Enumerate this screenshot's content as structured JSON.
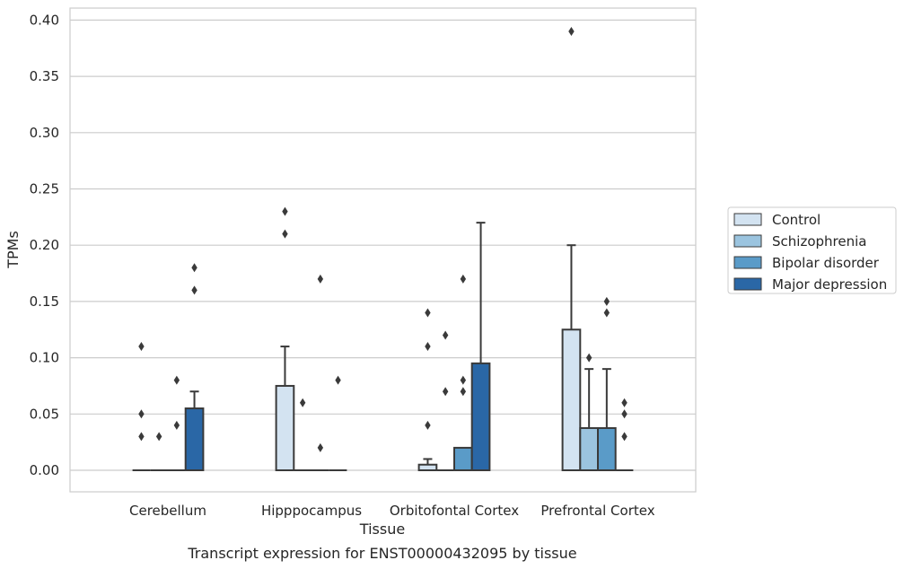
{
  "chart_data": {
    "type": "box",
    "title": "",
    "caption": "Transcript expression for ENST00000432095 by tissue",
    "xlabel": "Tissue",
    "ylabel": "TPMs",
    "ylim": [
      -0.019,
      0.41
    ],
    "yticks": [
      0.0,
      0.05,
      0.1,
      0.15,
      0.2,
      0.25,
      0.3,
      0.35,
      0.4
    ],
    "ytick_labels": [
      "0.00",
      "0.05",
      "0.10",
      "0.15",
      "0.20",
      "0.25",
      "0.30",
      "0.35",
      "0.40"
    ],
    "grid": "horizontal",
    "legend_position": "right",
    "categories": [
      "Cerebellum",
      "Hipppocampus",
      "Orbitofontal Cortex",
      "Prefrontal Cortex"
    ],
    "colors": {
      "Control": "#d3e3f1",
      "Schizophrenia": "#9bc4df",
      "Bipolar disorder": "#5a9bc8",
      "Major depression": "#2a67a6",
      "outline": "#3a3a3a",
      "grid": "#cccccc"
    },
    "series": [
      {
        "name": "Control",
        "boxes": [
          {
            "q1": 0,
            "median": 0,
            "q3": 0,
            "whisker_low": 0,
            "whisker_high": 0,
            "outliers": [
              0.03,
              0.05,
              0.11
            ]
          },
          {
            "q1": 0,
            "median": 0,
            "q3": 0.075,
            "whisker_low": 0,
            "whisker_high": 0.11,
            "outliers": [
              0.21,
              0.23
            ]
          },
          {
            "q1": 0,
            "median": 0,
            "q3": 0.005,
            "whisker_low": 0,
            "whisker_high": 0.01,
            "outliers": [
              0.04,
              0.11,
              0.14
            ]
          },
          {
            "q1": 0,
            "median": 0,
            "q3": 0.125,
            "whisker_low": 0,
            "whisker_high": 0.2,
            "outliers": [
              0.39
            ]
          }
        ]
      },
      {
        "name": "Schizophrenia",
        "boxes": [
          {
            "q1": 0,
            "median": 0,
            "q3": 0,
            "whisker_low": 0,
            "whisker_high": 0,
            "outliers": [
              0.03
            ]
          },
          {
            "q1": 0,
            "median": 0,
            "q3": 0,
            "whisker_low": 0,
            "whisker_high": 0,
            "outliers": [
              0.06
            ]
          },
          {
            "q1": 0,
            "median": 0,
            "q3": 0,
            "whisker_low": 0,
            "whisker_high": 0,
            "outliers": [
              0.07,
              0.12
            ]
          },
          {
            "q1": 0,
            "median": 0,
            "q3": 0.0375,
            "whisker_low": 0,
            "whisker_high": 0.09,
            "outliers": [
              0.1
            ]
          }
        ]
      },
      {
        "name": "Bipolar disorder",
        "boxes": [
          {
            "q1": 0,
            "median": 0,
            "q3": 0,
            "whisker_low": 0,
            "whisker_high": 0,
            "outliers": [
              0.04,
              0.08
            ]
          },
          {
            "q1": 0,
            "median": 0,
            "q3": 0,
            "whisker_low": 0,
            "whisker_high": 0,
            "outliers": [
              0.02,
              0.17
            ]
          },
          {
            "q1": 0,
            "median": 0,
            "q3": 0.02,
            "whisker_low": 0,
            "whisker_high": 0.02,
            "outliers": [
              0.07,
              0.08,
              0.17
            ]
          },
          {
            "q1": 0,
            "median": 0,
            "q3": 0.0375,
            "whisker_low": 0,
            "whisker_high": 0.09,
            "outliers": [
              0.14,
              0.15
            ]
          }
        ]
      },
      {
        "name": "Major depression",
        "boxes": [
          {
            "q1": 0,
            "median": 0,
            "q3": 0.055,
            "whisker_low": 0,
            "whisker_high": 0.07,
            "outliers": [
              0.16,
              0.18
            ]
          },
          {
            "q1": 0,
            "median": 0,
            "q3": 0,
            "whisker_low": 0,
            "whisker_high": 0,
            "outliers": [
              0.08
            ]
          },
          {
            "q1": 0,
            "median": 0,
            "q3": 0.095,
            "whisker_low": 0,
            "whisker_high": 0.22,
            "outliers": []
          },
          {
            "q1": 0,
            "median": 0,
            "q3": 0,
            "whisker_low": 0,
            "whisker_high": 0,
            "outliers": [
              0.03,
              0.05,
              0.06
            ]
          }
        ]
      }
    ]
  }
}
